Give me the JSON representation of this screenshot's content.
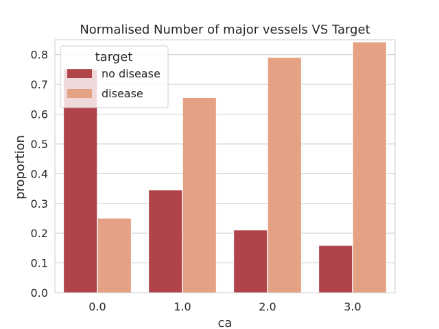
{
  "chart_data": {
    "type": "bar",
    "title": "Normalised Number of major vessels VS Target",
    "xlabel": "ca",
    "ylabel": "proportion",
    "categories": [
      "0.0",
      "1.0",
      "2.0",
      "3.0"
    ],
    "series": [
      {
        "name": "no disease",
        "color": "#b0444a",
        "values": [
          0.75,
          0.345,
          0.21,
          0.158
        ]
      },
      {
        "name": "disease",
        "color": "#e5a183",
        "values": [
          0.25,
          0.655,
          0.79,
          0.842
        ]
      }
    ],
    "ylim": [
      0,
      0.85
    ],
    "yticks": [
      "0.0",
      "0.1",
      "0.2",
      "0.3",
      "0.4",
      "0.5",
      "0.6",
      "0.7",
      "0.8"
    ],
    "grid": "horizontal",
    "legend": {
      "title": "target",
      "placement": "top-left"
    }
  }
}
